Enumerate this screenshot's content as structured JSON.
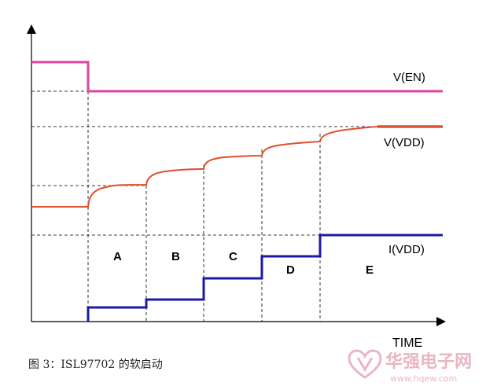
{
  "colors": {
    "v_en": "#e0459f",
    "v_vdd": "#e0502a",
    "i_vdd": "#1a1aa6",
    "axis": "#000000",
    "guide": "#000000",
    "watermark": "#e8a9b7"
  },
  "labels": {
    "v_en": "V(EN)",
    "v_vdd": "V(VDD)",
    "i_vdd": "I(VDD)",
    "x_axis": "TIME"
  },
  "phases": [
    "A",
    "B",
    "C",
    "D",
    "E"
  ],
  "caption": "图 3：ISL97702 的软启动",
  "watermark": {
    "name": "华强电子网",
    "url": "www.hqew.com"
  },
  "icons": {
    "watermark_logo": "heart-v-logo-icon"
  }
}
